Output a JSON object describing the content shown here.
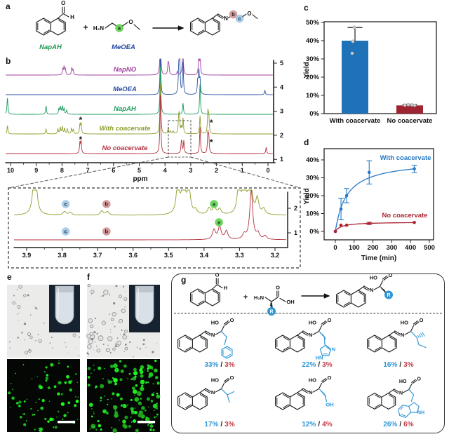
{
  "colors": {
    "bar_blue": "#1f72b8",
    "bar_red": "#9e2431",
    "line_blue": "#2779c4",
    "line_red": "#ab2331",
    "g_blue": "#2e96d6",
    "yield_blue": "#2e96d6",
    "yield_red": "#c23a46",
    "site_a": "#6fd75f",
    "site_b": "#d49b9b",
    "site_c": "#a9cce9",
    "green_label": "#1a9850",
    "blue_label": "#24449c",
    "bond": "#1a1a1a"
  },
  "panels": {
    "a": {
      "label": "a",
      "reactant1": "NapAH",
      "reactant2": "MeOEA",
      "plus": "+",
      "atoms": {
        "o": "O",
        "h": "H",
        "h2n": "H₂N"
      },
      "sites": {
        "a": "a",
        "b": "b",
        "c": "c"
      }
    },
    "b": {
      "label": "b",
      "xlabel": "ppm",
      "xticks": [
        10,
        9,
        8,
        7,
        6,
        5,
        4,
        3,
        2,
        1,
        0
      ],
      "right_ticks": [
        5,
        4,
        3,
        2,
        1
      ],
      "star": "*",
      "spectra": [
        {
          "name": "NapNO",
          "color": "#a23fa0",
          "peaks": [
            [
              7.97,
              8
            ],
            [
              7.92,
              11
            ],
            [
              7.87,
              8
            ],
            [
              7.62,
              10
            ],
            [
              7.57,
              7
            ],
            [
              4.18,
              62
            ],
            [
              3.88,
              16
            ],
            [
              3.85,
              12
            ],
            [
              3.52,
              5
            ],
            [
              3.31,
              48
            ],
            [
              2.69,
              22
            ],
            [
              2.64,
              28
            ]
          ]
        },
        {
          "name": "MeOEA",
          "color": "#2b52a5",
          "peaks": [
            [
              4.18,
              55
            ],
            [
              3.47,
              26
            ],
            [
              3.445,
              38
            ],
            [
              3.42,
              24
            ],
            [
              3.3,
              46
            ],
            [
              2.73,
              18
            ],
            [
              2.685,
              32
            ],
            [
              2.64,
              20
            ],
            [
              0.12,
              6
            ]
          ]
        },
        {
          "name": "NapAH",
          "color": "#1c9a5e",
          "peaks": [
            [
              10.12,
              24
            ],
            [
              8.62,
              12
            ],
            [
              8.12,
              8
            ],
            [
              8.06,
              10
            ],
            [
              7.99,
              11
            ],
            [
              7.92,
              8
            ],
            [
              7.82,
              6
            ],
            [
              4.18,
              72
            ],
            [
              3.3,
              16
            ],
            [
              2.64,
              44
            ]
          ]
        },
        {
          "name": "With coacervate",
          "color": "#8f9d2c",
          "stars": [
            [
              7.28,
              20
            ],
            [
              2.2,
              16
            ]
          ],
          "peaks": [
            [
              10.12,
              12
            ],
            [
              8.62,
              7
            ],
            [
              8.16,
              7
            ],
            [
              8.07,
              9
            ],
            [
              7.99,
              10
            ],
            [
              7.9,
              8
            ],
            [
              7.79,
              7
            ],
            [
              7.63,
              8
            ],
            [
              7.56,
              6
            ],
            [
              7.305,
              13
            ],
            [
              7.26,
              15
            ],
            [
              4.18,
              76
            ],
            [
              3.875,
              9
            ],
            [
              3.79,
              3.5
            ],
            [
              3.685,
              4
            ],
            [
              3.47,
              18
            ],
            [
              3.445,
              24
            ],
            [
              3.37,
              9
            ],
            [
              3.3,
              22
            ],
            [
              2.64,
              26
            ],
            [
              2.335,
              30
            ],
            [
              2.3,
              24
            ]
          ]
        },
        {
          "name": "No coacervate",
          "color": "#b5303c",
          "stars": [
            [
              7.28,
              20
            ],
            [
              2.2,
              16
            ]
          ],
          "peaks": [
            [
              7.305,
              15
            ],
            [
              7.26,
              17
            ],
            [
              4.18,
              88
            ],
            [
              3.37,
              10
            ],
            [
              3.35,
              13
            ],
            [
              3.27,
              18
            ],
            [
              2.64,
              38
            ],
            [
              2.335,
              28
            ],
            [
              2.3,
              22
            ],
            [
              0.07,
              9
            ]
          ]
        }
      ],
      "inset": {
        "xticks": [
          "3.9",
          "3.8",
          "3.7",
          "3.6",
          "3.5",
          "3.4",
          "3.3",
          "3.2"
        ],
        "right_ticks": [
          2,
          1
        ],
        "traces": [
          {
            "color": "#8f9d2c",
            "peaks": [
              [
                3.877,
                90
              ],
              [
                3.793,
                5
              ],
              [
                3.777,
                4
              ],
              [
                3.688,
                6
              ],
              [
                3.672,
                5
              ],
              [
                3.474,
                46
              ],
              [
                3.458,
                60
              ],
              [
                3.443,
                40
              ],
              [
                3.424,
                6
              ],
              [
                3.386,
                9
              ],
              [
                3.371,
                11
              ],
              [
                3.356,
                8
              ],
              [
                3.302,
                45
              ],
              [
                3.287,
                55
              ],
              [
                3.27,
                65
              ],
              [
                3.25,
                22
              ],
              [
                3.232,
                8
              ]
            ]
          },
          {
            "color": "#b5303c",
            "peaks": [
              [
                3.372,
                14
              ],
              [
                3.356,
                18
              ],
              [
                3.337,
                12
              ],
              [
                3.287,
                7
              ],
              [
                3.267,
                70
              ],
              [
                3.248,
                8
              ],
              [
                3.228,
                5
              ]
            ]
          }
        ],
        "site_labels": [
          {
            "text": "c",
            "ppm": 3.79,
            "row": 0
          },
          {
            "text": "b",
            "ppm": 3.675,
            "row": 0
          },
          {
            "text": "a",
            "ppm": 3.372,
            "row": 0
          },
          {
            "text": "c",
            "ppm": 3.79,
            "row": 1
          },
          {
            "text": "b",
            "ppm": 3.675,
            "row": 1
          },
          {
            "text": "a",
            "ppm": 3.358,
            "row": 1
          }
        ]
      }
    },
    "c": {
      "label": "c"
    },
    "d": {
      "label": "d"
    },
    "e": {
      "label": "e",
      "brightfield_dots": 55,
      "fluorescent_dots": 78
    },
    "f": {
      "label": "f",
      "brightfield_dots": 115,
      "fluorescent_dots": 150
    },
    "g": {
      "label": "g",
      "plus": "+",
      "slash": "/",
      "atoms": {
        "o": "O",
        "h": "H",
        "h2n": "H₂N",
        "ho": "HO",
        "oh": "OH",
        "n": "N",
        "nh": "NH",
        "hn": "HN",
        "r": "R"
      },
      "products": [
        {
          "side_chain": "benzyl",
          "blue": "33%",
          "red": "3%"
        },
        {
          "side_chain": "imidazolylmethyl",
          "blue": "22%",
          "red": "3%"
        },
        {
          "side_chain": "sec-butyl",
          "blue": "16%",
          "red": "3%"
        },
        {
          "side_chain": "isopropyl",
          "blue": "17%",
          "red": "3%"
        },
        {
          "side_chain": "hydroxymethyl",
          "blue": "12%",
          "red": "4%"
        },
        {
          "side_chain": "indolylmethyl",
          "blue": "26%",
          "red": "6%"
        }
      ]
    }
  },
  "chart_data": [
    {
      "id": "c",
      "type": "bar",
      "categories": [
        "With coacervate",
        "No coacervate"
      ],
      "values": [
        40,
        4.5
      ],
      "errors_plus": [
        7.2,
        0.6
      ],
      "points": [
        [
          47,
          39.5,
          33
        ],
        [
          4.2,
          4.6,
          4.9,
          4.4
        ]
      ],
      "colors": [
        "#1f72b8",
        "#9e2431"
      ],
      "ylabel": "Yield",
      "yticks": [
        "0%",
        "10%",
        "20%",
        "30%",
        "40%",
        "50%"
      ],
      "ylim": [
        0,
        52
      ],
      "grid": false,
      "legend": "none"
    },
    {
      "id": "d",
      "type": "line",
      "xlabel": "Time (min)",
      "ylabel": "Yield",
      "xticks": [
        0,
        100,
        200,
        300,
        400,
        500
      ],
      "yticks": [
        "0%",
        "10%",
        "20%",
        "30%",
        "40%"
      ],
      "xlim": [
        -40,
        520
      ],
      "ylim": [
        -3,
        44
      ],
      "grid": false,
      "legend": "inline",
      "series": [
        {
          "name": "With coacervate",
          "color": "#2779c4",
          "x": [
            0,
            30,
            60,
            180,
            420
          ],
          "y": [
            0,
            12.5,
            20,
            33,
            35
          ],
          "err": [
            0.5,
            6,
            4,
            6.5,
            2
          ],
          "fit": {
            "vmax": 40,
            "k": 60
          }
        },
        {
          "name": "No coacervate",
          "color": "#ab2331",
          "x": [
            0,
            30,
            60,
            180,
            420
          ],
          "y": [
            0,
            3.5,
            3.5,
            4.5,
            5
          ],
          "err": [
            0.3,
            0.5,
            0.5,
            0.6,
            0.5
          ],
          "fit": {
            "vmax": 5.3,
            "k": 32
          }
        }
      ]
    }
  ]
}
